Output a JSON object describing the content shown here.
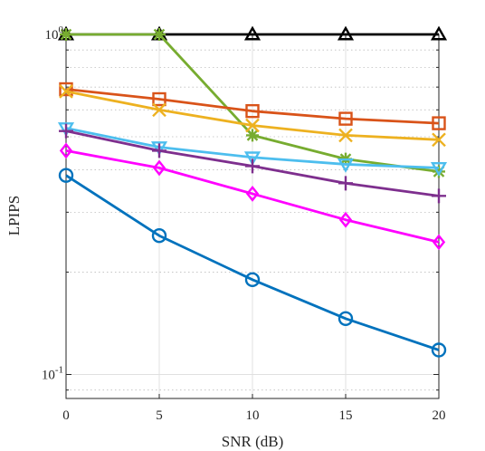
{
  "chart_data": {
    "type": "line",
    "title": "",
    "xlabel": "SNR (dB)",
    "ylabel": "LPIPS",
    "x": [
      0,
      5,
      10,
      15,
      20
    ],
    "xlim": [
      0,
      20
    ],
    "ylim": [
      0.085,
      1.0
    ],
    "yscale": "log",
    "x_ticks": [
      "0",
      "5",
      "10",
      "15",
      "20"
    ],
    "y_ticks": [
      {
        "value": 1,
        "base": "10",
        "exp": "0"
      },
      {
        "value": 0.1,
        "base": "10",
        "exp": "-1"
      }
    ],
    "grid": true,
    "legend": "none",
    "series": [
      {
        "color": "#000000",
        "marker": "triangle-up",
        "values": [
          1.0,
          1.0,
          1.0,
          1.0,
          1.0
        ]
      },
      {
        "color": "#77AC30",
        "marker": "asterisk",
        "values": [
          1.0,
          1.0,
          0.505,
          0.43,
          0.395
        ]
      },
      {
        "color": "#D95319",
        "marker": "square",
        "values": [
          0.69,
          0.645,
          0.595,
          0.565,
          0.548
        ]
      },
      {
        "color": "#EDB120",
        "marker": "x",
        "values": [
          0.68,
          0.6,
          0.54,
          0.505,
          0.49
        ]
      },
      {
        "color": "#4DBEEE",
        "marker": "triangle-down",
        "values": [
          0.53,
          0.466,
          0.435,
          0.415,
          0.405
        ]
      },
      {
        "color": "#7E2F8E",
        "marker": "plus",
        "values": [
          0.52,
          0.455,
          0.41,
          0.365,
          0.335
        ]
      },
      {
        "color": "#FF00FF",
        "marker": "diamond",
        "values": [
          0.455,
          0.405,
          0.34,
          0.285,
          0.245
        ]
      },
      {
        "color": "#0072BD",
        "marker": "circle",
        "values": [
          0.385,
          0.256,
          0.19,
          0.146,
          0.118
        ]
      }
    ]
  }
}
